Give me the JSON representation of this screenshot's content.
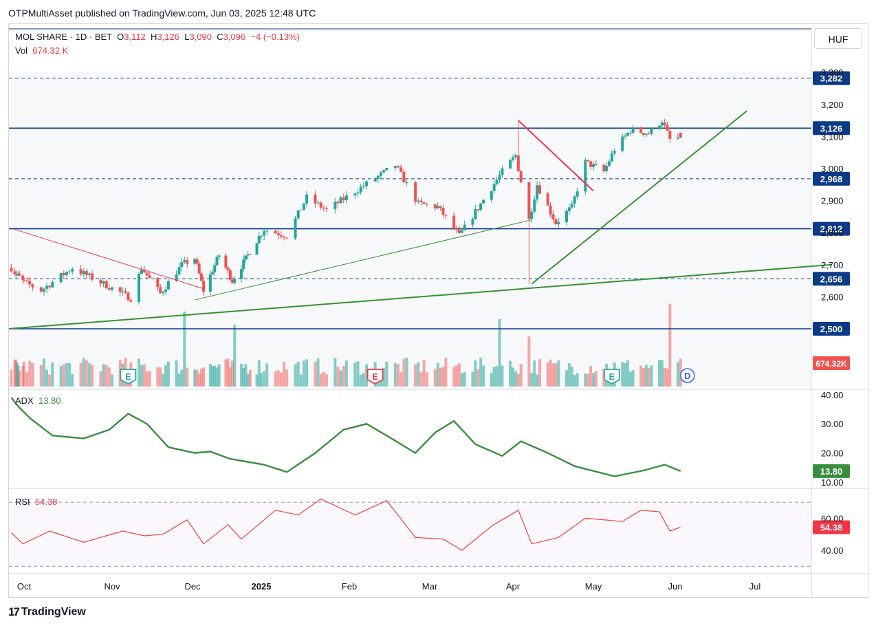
{
  "header": {
    "publisher_line": "OTPMultiAsset published on TradingView.com, Jun 03, 2025 12:48 UTC"
  },
  "legend": {
    "symbol": "MOL SHARE · 1D · BET",
    "open_label": "O",
    "open": "3,112",
    "high_label": "H",
    "high": "3,126",
    "low_label": "L",
    "low": "3,090",
    "close_label": "C",
    "close": "3,096",
    "change": "−4 (−0.13%)",
    "vol_label": "Vol",
    "vol": "674.32 K"
  },
  "currency": "HUF",
  "adx_legend": {
    "label": "ADX",
    "value": "13.80"
  },
  "rsi_legend": {
    "label": "RSI",
    "value": "54.38"
  },
  "footer": {
    "brand": "TradingView"
  },
  "colors": {
    "up": "#26a69a",
    "down": "#ef5350",
    "line_blue": "#0d3a87",
    "trend_green": "#3a8f35",
    "trend_red": "#f23645",
    "rsi": "#f44336",
    "adx": "#388e3c"
  },
  "chart_data": [
    {
      "type": "candlestick",
      "name": "price",
      "ylim": [
        2480,
        3320
      ],
      "y_ticks": [
        2600,
        2700,
        2800,
        2900,
        3000,
        3100,
        3200,
        3300
      ],
      "y_tick_labels": [
        "2,600",
        "2,700",
        "2,800",
        "2,900",
        "3,000",
        "3,100",
        "3,200",
        "3,300"
      ],
      "x_month_labels": [
        {
          "label": "Oct",
          "date": "2024-10-01"
        },
        {
          "label": "Nov",
          "date": "2024-11-01"
        },
        {
          "label": "Dec",
          "date": "2024-12-01"
        },
        {
          "label": "2025",
          "date": "2025-01-01",
          "bold": true
        },
        {
          "label": "Feb",
          "date": "2025-02-01"
        },
        {
          "label": "Mar",
          "date": "2025-03-01"
        },
        {
          "label": "Apr",
          "date": "2025-04-01"
        },
        {
          "label": "May",
          "date": "2025-05-01"
        },
        {
          "label": "Jun",
          "date": "2025-06-01"
        },
        {
          "label": "Jul",
          "date": "2025-07-01"
        }
      ],
      "horizontal_levels": [
        {
          "value": 3282,
          "label": "3,282",
          "style": "dashed"
        },
        {
          "value": 3126,
          "label": "3,126",
          "style": "solid"
        },
        {
          "value": 2968,
          "label": "2,968",
          "style": "dashed"
        },
        {
          "value": 2812,
          "label": "2,812",
          "style": "solid"
        },
        {
          "value": 2656,
          "label": "2,656",
          "style": "dashed"
        },
        {
          "value": 2500,
          "label": "2,500",
          "style": "solid"
        }
      ],
      "anchors": [
        {
          "date": "2024-09-20",
          "close": 2690
        },
        {
          "date": "2024-10-07",
          "close": 2620
        },
        {
          "date": "2024-10-18",
          "close": 2690
        },
        {
          "date": "2024-11-08",
          "close": 2595
        },
        {
          "date": "2024-11-12",
          "close": 2690
        },
        {
          "date": "2024-11-19",
          "close": 2610
        },
        {
          "date": "2024-11-27",
          "close": 2700
        },
        {
          "date": "2024-12-02",
          "close": 2720
        },
        {
          "date": "2024-12-06",
          "close": 2620
        },
        {
          "date": "2024-12-13",
          "close": 2730
        },
        {
          "date": "2024-12-19",
          "close": 2650
        },
        {
          "date": "2025-01-02",
          "close": 2810
        },
        {
          "date": "2025-01-10",
          "close": 2790
        },
        {
          "date": "2025-01-17",
          "close": 2910
        },
        {
          "date": "2025-01-24",
          "close": 2870
        },
        {
          "date": "2025-02-05",
          "close": 2940
        },
        {
          "date": "2025-02-17",
          "close": 3010
        },
        {
          "date": "2025-02-25",
          "close": 2890
        },
        {
          "date": "2025-03-04",
          "close": 2880
        },
        {
          "date": "2025-03-12",
          "close": 2790
        },
        {
          "date": "2025-03-20",
          "close": 2890
        },
        {
          "date": "2025-03-28",
          "close": 2990
        },
        {
          "date": "2025-04-02",
          "close": 3040
        },
        {
          "date": "2025-04-07",
          "close": 2840
        },
        {
          "date": "2025-04-10",
          "close": 2950
        },
        {
          "date": "2025-04-17",
          "close": 2830
        },
        {
          "date": "2025-04-23",
          "close": 2880
        },
        {
          "date": "2025-04-28",
          "close": 3020
        },
        {
          "date": "2025-05-05",
          "close": 2990
        },
        {
          "date": "2025-05-09",
          "close": 3060
        },
        {
          "date": "2025-05-15",
          "close": 3120
        },
        {
          "date": "2025-05-22",
          "close": 3110
        },
        {
          "date": "2025-05-27",
          "close": 3150
        },
        {
          "date": "2025-05-30",
          "close": 3090
        },
        {
          "date": "2025-06-03",
          "close": 3096
        }
      ],
      "spikes": [
        {
          "date": "2025-04-03",
          "high": 3150
        },
        {
          "date": "2025-04-07",
          "low": 2640
        }
      ],
      "trendlines": [
        {
          "color": "red",
          "from": {
            "date": "2024-09-23",
            "value": 2810
          },
          "to": {
            "date": "2024-12-06",
            "value": 2625
          },
          "width": 1
        },
        {
          "color": "green",
          "from": {
            "date": "2024-12-02",
            "value": 2590
          },
          "to": {
            "date": "2025-04-08",
            "value": 2840
          },
          "width": 1
        },
        {
          "color": "green",
          "from": {
            "date": "2024-09-18",
            "value": 2500
          },
          "to": {
            "date": "2025-07-30",
            "value": 2700
          },
          "width": 2
        },
        {
          "color": "green",
          "from": {
            "date": "2025-04-08",
            "value": 2640
          },
          "to": {
            "date": "2025-06-28",
            "value": 3180
          },
          "width": 2
        },
        {
          "color": "red",
          "from": {
            "date": "2025-04-03",
            "value": 3150
          },
          "to": {
            "date": "2025-05-01",
            "value": 2930
          },
          "width": 2
        }
      ],
      "events": [
        {
          "date": "2024-11-07",
          "label": "E",
          "kind": "earnings-past"
        },
        {
          "date": "2025-02-10",
          "label": "E",
          "kind": "earnings-negative"
        },
        {
          "date": "2025-05-08",
          "label": "E",
          "kind": "earnings-past"
        },
        {
          "date": "2025-06-03",
          "label": "D",
          "kind": "dividend"
        }
      ]
    },
    {
      "type": "bar",
      "name": "volume",
      "last_value_label": "674.32K",
      "spikes": [
        {
          "date": "2024-11-28",
          "value": 3.9
        },
        {
          "date": "2024-12-20",
          "value": 3.2
        },
        {
          "date": "2025-03-27",
          "value": 3.5
        },
        {
          "date": "2025-04-07",
          "value": 2.6
        },
        {
          "date": "2025-05-30",
          "value": 4.3
        }
      ]
    },
    {
      "type": "line",
      "name": "ADX",
      "ylim": [
        10,
        40
      ],
      "y_ticks": [
        10,
        20,
        30,
        40
      ],
      "y_tick_labels": [
        "10.00",
        "20.00",
        "30.00",
        "40.00"
      ],
      "last_value_label": "13.80",
      "points": [
        {
          "date": "2024-09-20",
          "value": 39
        },
        {
          "date": "2024-09-26",
          "value": 36
        },
        {
          "date": "2024-10-03",
          "value": 32
        },
        {
          "date": "2024-10-11",
          "value": 26
        },
        {
          "date": "2024-10-22",
          "value": 25
        },
        {
          "date": "2024-10-31",
          "value": 28
        },
        {
          "date": "2024-11-07",
          "value": 33.5
        },
        {
          "date": "2024-11-14",
          "value": 30
        },
        {
          "date": "2024-11-22",
          "value": 22
        },
        {
          "date": "2024-12-02",
          "value": 20
        },
        {
          "date": "2024-12-09",
          "value": 20.5
        },
        {
          "date": "2024-12-18",
          "value": 18
        },
        {
          "date": "2025-01-02",
          "value": 16
        },
        {
          "date": "2025-01-10",
          "value": 13.5
        },
        {
          "date": "2025-01-20",
          "value": 20
        },
        {
          "date": "2025-01-30",
          "value": 28
        },
        {
          "date": "2025-02-07",
          "value": 30
        },
        {
          "date": "2025-02-14",
          "value": 26
        },
        {
          "date": "2025-02-24",
          "value": 20
        },
        {
          "date": "2025-03-03",
          "value": 27
        },
        {
          "date": "2025-03-10",
          "value": 31
        },
        {
          "date": "2025-03-18",
          "value": 23
        },
        {
          "date": "2025-03-28",
          "value": 19
        },
        {
          "date": "2025-04-04",
          "value": 24
        },
        {
          "date": "2025-04-14",
          "value": 20
        },
        {
          "date": "2025-04-24",
          "value": 15.5
        },
        {
          "date": "2025-05-09",
          "value": 12
        },
        {
          "date": "2025-05-20",
          "value": 14
        },
        {
          "date": "2025-05-28",
          "value": 16
        },
        {
          "date": "2025-06-03",
          "value": 13.8
        }
      ]
    },
    {
      "type": "line",
      "name": "RSI",
      "ylim": [
        25,
        80
      ],
      "y_ticks": [
        40,
        60
      ],
      "y_tick_labels": [
        "40.00",
        "60.00"
      ],
      "bands": [
        30,
        70
      ],
      "last_value_label": "54.38",
      "points": [
        {
          "date": "2024-09-20",
          "value": 51
        },
        {
          "date": "2024-09-30",
          "value": 44
        },
        {
          "date": "2024-10-10",
          "value": 52
        },
        {
          "date": "2024-10-22",
          "value": 45
        },
        {
          "date": "2024-11-05",
          "value": 52
        },
        {
          "date": "2024-11-13",
          "value": 49
        },
        {
          "date": "2024-11-20",
          "value": 50
        },
        {
          "date": "2024-11-29",
          "value": 59
        },
        {
          "date": "2024-12-06",
          "value": 44
        },
        {
          "date": "2024-12-17",
          "value": 56
        },
        {
          "date": "2024-12-23",
          "value": 47
        },
        {
          "date": "2025-01-06",
          "value": 65
        },
        {
          "date": "2025-01-14",
          "value": 62
        },
        {
          "date": "2025-01-22",
          "value": 72
        },
        {
          "date": "2025-02-03",
          "value": 62
        },
        {
          "date": "2025-02-14",
          "value": 71
        },
        {
          "date": "2025-02-24",
          "value": 48
        },
        {
          "date": "2025-03-06",
          "value": 47
        },
        {
          "date": "2025-03-13",
          "value": 40
        },
        {
          "date": "2025-03-24",
          "value": 55
        },
        {
          "date": "2025-04-03",
          "value": 65
        },
        {
          "date": "2025-04-08",
          "value": 44
        },
        {
          "date": "2025-04-18",
          "value": 48
        },
        {
          "date": "2025-04-28",
          "value": 60
        },
        {
          "date": "2025-05-12",
          "value": 58
        },
        {
          "date": "2025-05-19",
          "value": 65
        },
        {
          "date": "2025-05-26",
          "value": 64
        },
        {
          "date": "2025-05-30",
          "value": 52
        },
        {
          "date": "2025-06-03",
          "value": 54.38
        }
      ]
    }
  ]
}
